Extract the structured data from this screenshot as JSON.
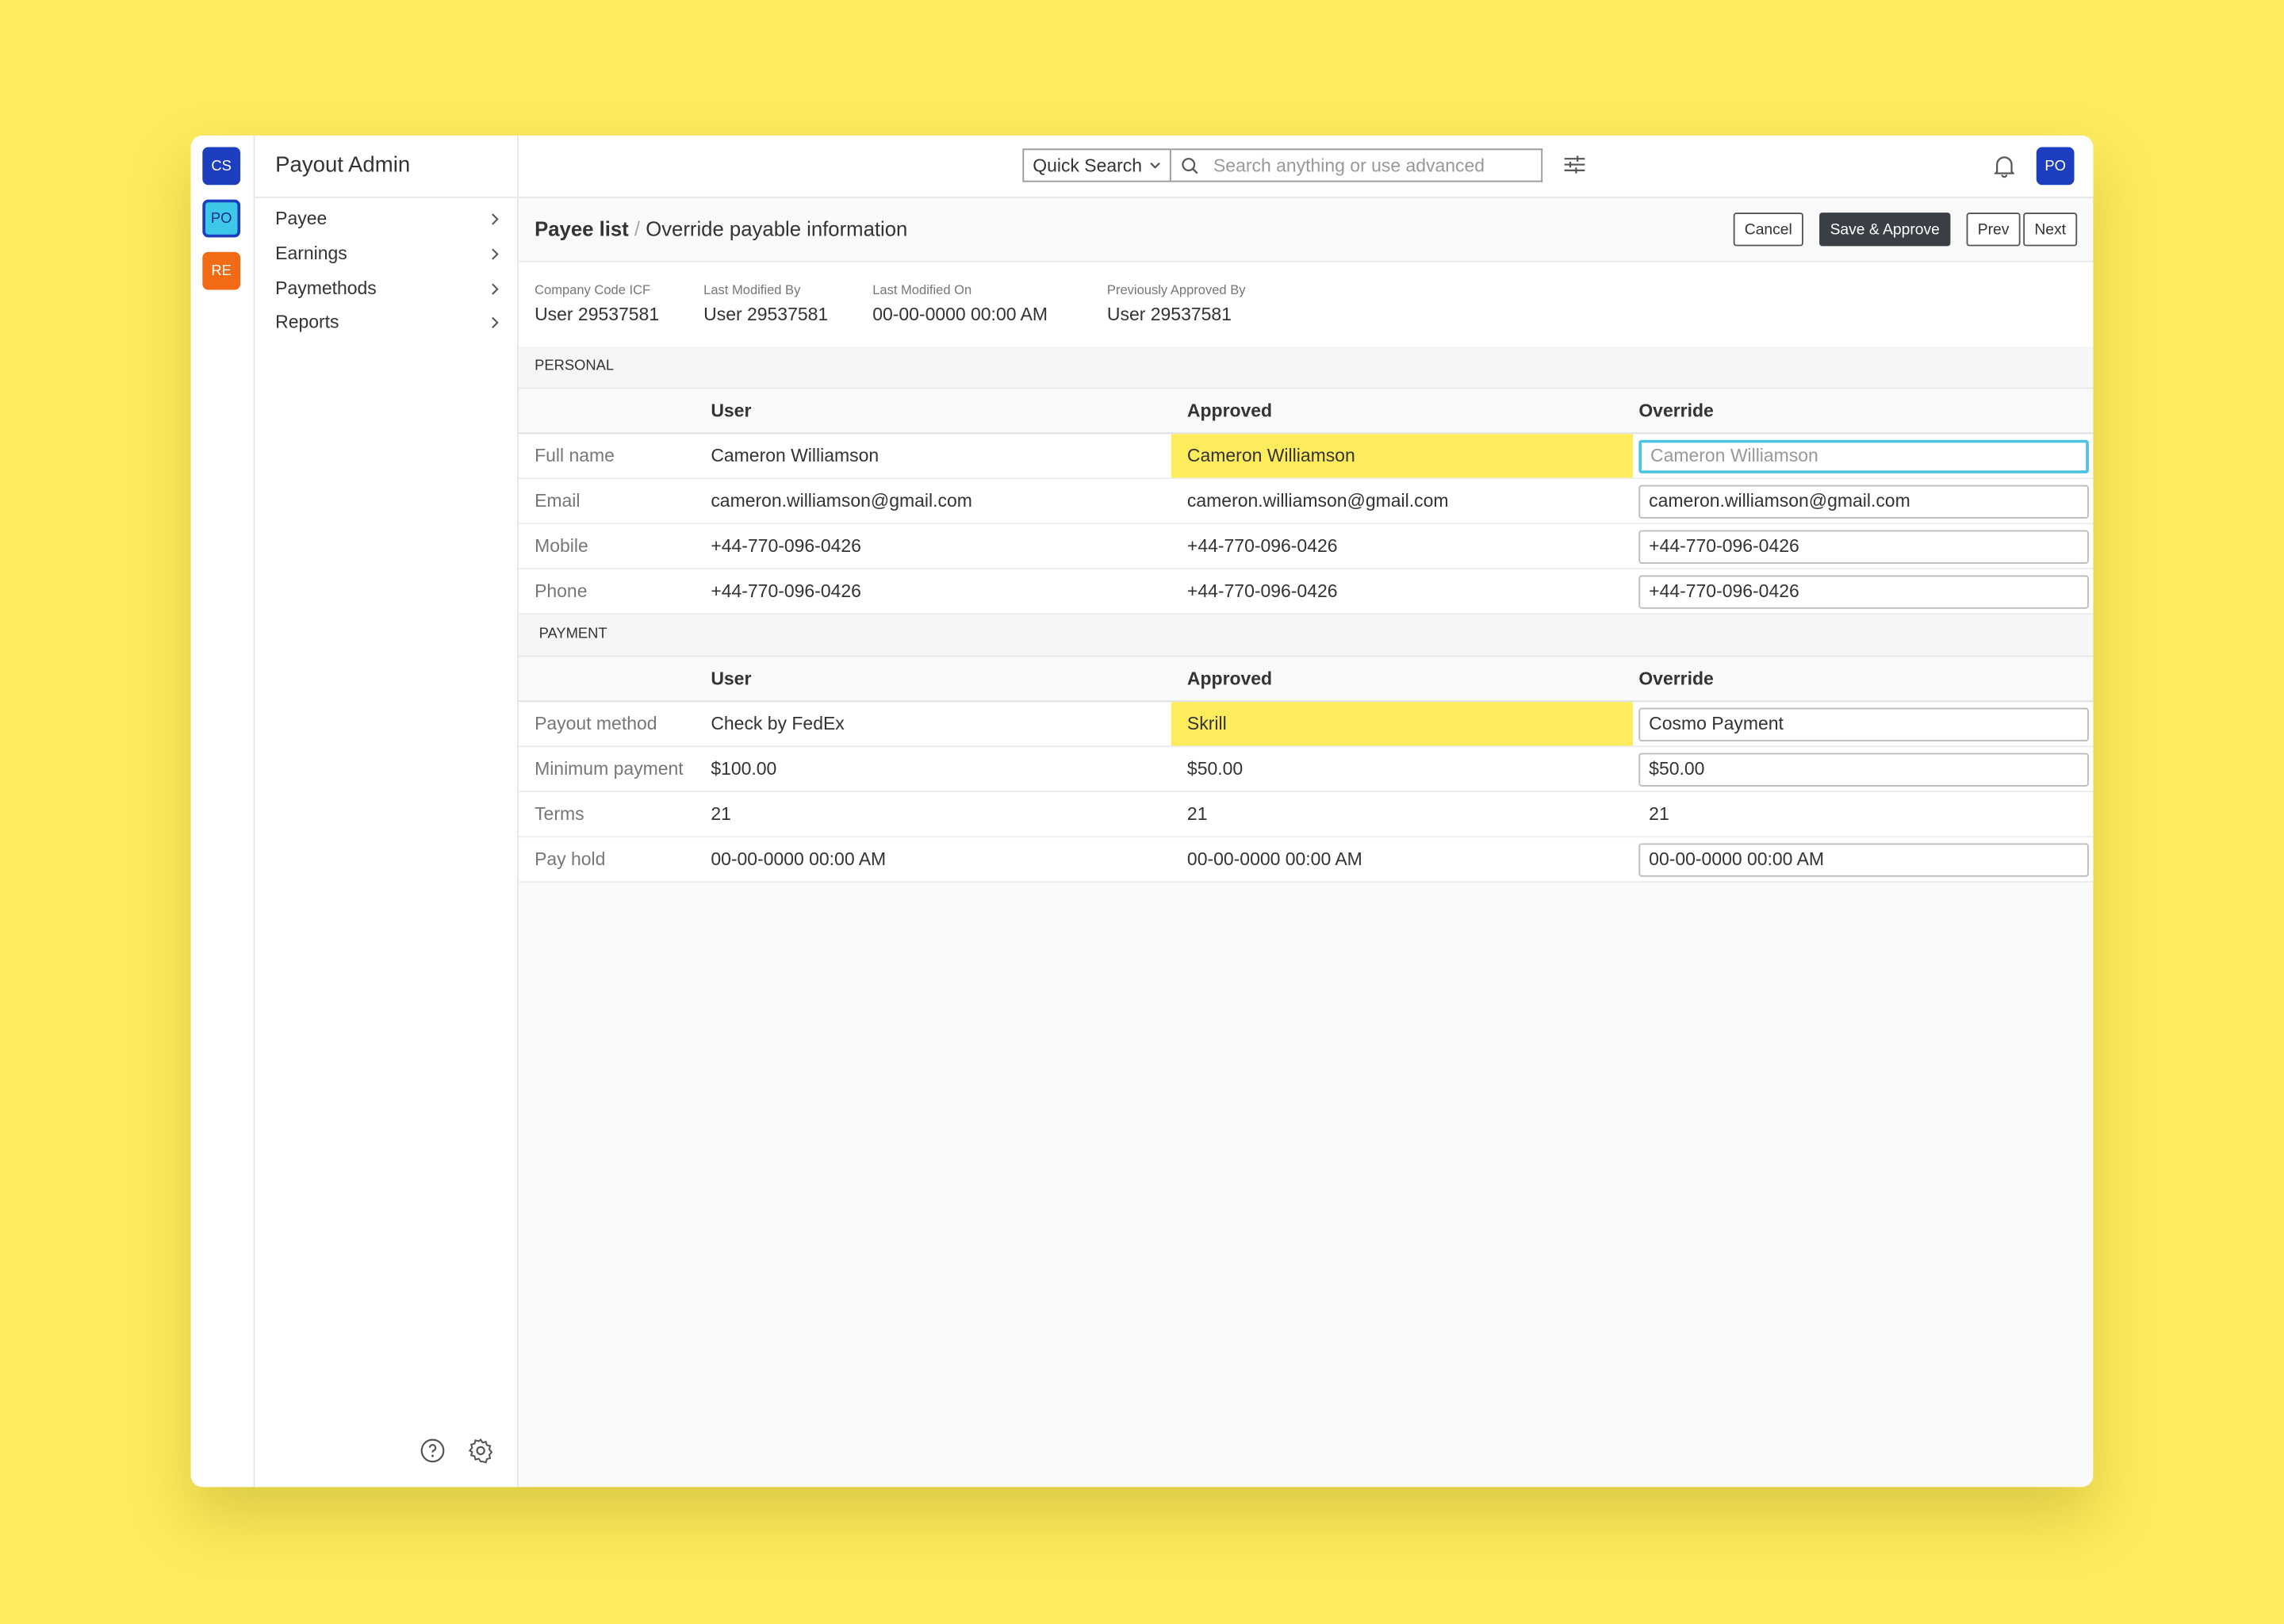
{
  "workspaces": [
    "CS",
    "PO",
    "RE"
  ],
  "app_title": "Payout Admin",
  "nav": [
    "Payee",
    "Earnings",
    "Paymethods",
    "Reports"
  ],
  "search": {
    "scope": "Quick Search",
    "placeholder": "Search anything or use advanced"
  },
  "user_avatar": "PO",
  "breadcrumb": {
    "parent": "Payee list",
    "separator": "/",
    "current": "Override payable information"
  },
  "actions": {
    "cancel": "Cancel",
    "save": "Save & Approve",
    "prev": "Prev",
    "next": "Next"
  },
  "meta": [
    {
      "label": "Company Code ICF",
      "value": "User 29537581"
    },
    {
      "label": "Last Modified By",
      "value": "User 29537581"
    },
    {
      "label": "Last Modified On",
      "value": "00-00-0000 00:00 AM"
    },
    {
      "label": "Previously Approved By",
      "value": "User 29537581"
    }
  ],
  "sections": [
    {
      "title": "PERSONAL",
      "columns": [
        "User",
        "Approved",
        "Override"
      ],
      "rows": [
        {
          "label": "Full name",
          "user": "Cameron Williamson",
          "approved": "Cameron Williamson",
          "override": "Cameron Williamson",
          "highlight": true,
          "input": true,
          "placeholder": true
        },
        {
          "label": "Email",
          "user": "cameron.williamson@gmail.com",
          "approved": "cameron.williamson@gmail.com",
          "override": "cameron.williamson@gmail.com",
          "highlight": false,
          "input": true,
          "placeholder": false
        },
        {
          "label": "Mobile",
          "user": "+44-770-096-0426",
          "approved": "+44-770-096-0426",
          "override": "+44-770-096-0426",
          "highlight": false,
          "input": true,
          "placeholder": false
        },
        {
          "label": "Phone",
          "user": "+44-770-096-0426",
          "approved": "+44-770-096-0426",
          "override": "+44-770-096-0426",
          "highlight": false,
          "input": true,
          "placeholder": false
        }
      ]
    },
    {
      "title": "PAYMENT",
      "columns": [
        "User",
        "Approved",
        "Override"
      ],
      "rows": [
        {
          "label": "Payout method",
          "user": "Check by FedEx",
          "approved": "Skrill",
          "override": "Cosmo Payment",
          "highlight": true,
          "input": true,
          "placeholder": false
        },
        {
          "label": "Minimum payment",
          "user": "$100.00",
          "approved": "$50.00",
          "override": "$50.00",
          "highlight": false,
          "input": true,
          "placeholder": false
        },
        {
          "label": "Terms",
          "user": "21",
          "approved": "21",
          "override": "21",
          "highlight": false,
          "input": false,
          "placeholder": false
        },
        {
          "label": "Pay hold",
          "user": "00-00-0000 00:00 AM",
          "approved": "00-00-0000 00:00 AM",
          "override": "00-00-0000 00:00 AM",
          "highlight": false,
          "input": true,
          "placeholder": false
        }
      ]
    }
  ]
}
